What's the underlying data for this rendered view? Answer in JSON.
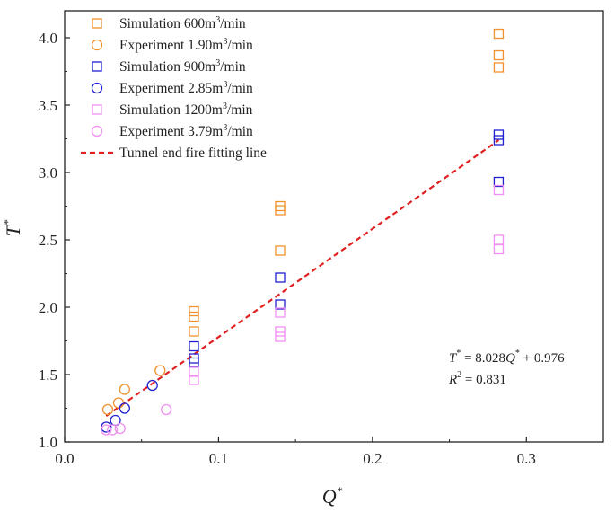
{
  "chart_data": {
    "type": "scatter",
    "title": "",
    "xlabel": "Q",
    "xlabel_sup": "*",
    "ylabel": "T",
    "ylabel_sup": "*",
    "xlim": [
      0.0,
      0.35
    ],
    "ylim": [
      1.0,
      4.2
    ],
    "xticks": [
      0.0,
      0.1,
      0.2,
      0.3
    ],
    "xtick_labels": [
      "0.0",
      "0.1",
      "0.2",
      "0.3"
    ],
    "yticks": [
      1.0,
      1.5,
      2.0,
      2.5,
      3.0,
      3.5,
      4.0
    ],
    "ytick_labels": [
      "1.0",
      "1.5",
      "2.0",
      "2.5",
      "3.0",
      "3.5",
      "4.0"
    ],
    "grid": false,
    "legend_position": "top-left",
    "series": [
      {
        "name": "Simulation 600m³/min",
        "label_pre": "Simulation 600m",
        "label_post": "/min",
        "marker": "square",
        "color": "#f0922e",
        "points": [
          [
            0.084,
            1.97
          ],
          [
            0.084,
            1.93
          ],
          [
            0.084,
            1.82
          ],
          [
            0.14,
            2.75
          ],
          [
            0.14,
            2.72
          ],
          [
            0.14,
            2.42
          ],
          [
            0.282,
            4.03
          ],
          [
            0.282,
            3.87
          ],
          [
            0.282,
            3.78
          ]
        ]
      },
      {
        "name": "Experiment 1.90m³/min",
        "label_pre": "Experiment 1.90m",
        "label_post": "/min",
        "marker": "circle",
        "color": "#f0922e",
        "points": [
          [
            0.028,
            1.24
          ],
          [
            0.035,
            1.29
          ],
          [
            0.039,
            1.39
          ],
          [
            0.062,
            1.53
          ]
        ]
      },
      {
        "name": "Simulation 900m³/min",
        "label_pre": "Simulation 900m",
        "label_post": "/min",
        "marker": "square",
        "color": "#2020d0",
        "points": [
          [
            0.084,
            1.71
          ],
          [
            0.084,
            1.62
          ],
          [
            0.084,
            1.59
          ],
          [
            0.14,
            2.22
          ],
          [
            0.14,
            2.02
          ],
          [
            0.282,
            3.28
          ],
          [
            0.282,
            3.24
          ],
          [
            0.282,
            2.93
          ]
        ]
      },
      {
        "name": "Experiment 2.85m³/min",
        "label_pre": "Experiment 2.85m",
        "label_post": "/min",
        "marker": "circle",
        "color": "#2020d0",
        "points": [
          [
            0.027,
            1.11
          ],
          [
            0.033,
            1.16
          ],
          [
            0.039,
            1.25
          ],
          [
            0.057,
            1.42
          ]
        ]
      },
      {
        "name": "Simulation 1200m³/min",
        "label_pre": "Simulation 1200m",
        "label_post": "/min",
        "marker": "square",
        "color": "#f090f0",
        "points": [
          [
            0.084,
            1.52
          ],
          [
            0.084,
            1.46
          ],
          [
            0.14,
            1.96
          ],
          [
            0.14,
            1.82
          ],
          [
            0.14,
            1.78
          ],
          [
            0.282,
            2.87
          ],
          [
            0.282,
            2.5
          ],
          [
            0.282,
            2.43
          ]
        ]
      },
      {
        "name": "Experiment 3.79m³/min",
        "label_pre": "Experiment 3.79m",
        "label_post": "/min",
        "marker": "circle",
        "color": "#f090f0",
        "points": [
          [
            0.027,
            1.09
          ],
          [
            0.031,
            1.09
          ],
          [
            0.036,
            1.1
          ],
          [
            0.066,
            1.24
          ]
        ]
      }
    ],
    "fit_line": {
      "name": "Tunnel end fire fitting line",
      "color": "#e02020",
      "slope": 8.028,
      "intercept": 0.976,
      "x_range": [
        0.027,
        0.282
      ]
    },
    "equation_parts": [
      "T",
      "*",
      " = 8.028",
      "Q",
      "*",
      " + 0.976"
    ],
    "r2_parts": [
      "R",
      "2",
      " = 0.831"
    ]
  }
}
